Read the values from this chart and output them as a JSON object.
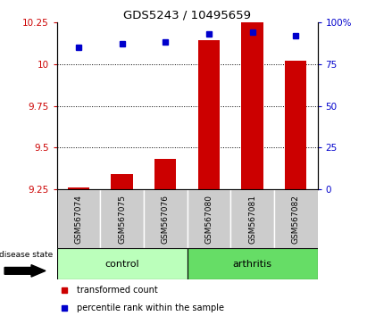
{
  "title": "GDS5243 / 10495659",
  "samples": [
    "GSM567074",
    "GSM567075",
    "GSM567076",
    "GSM567080",
    "GSM567081",
    "GSM567082"
  ],
  "bar_values": [
    9.262,
    9.345,
    9.435,
    10.14,
    10.255,
    10.02
  ],
  "percentile_values": [
    85,
    87,
    88,
    93,
    94,
    92
  ],
  "bar_color": "#cc0000",
  "dot_color": "#0000cc",
  "ylim_left": [
    9.25,
    10.25
  ],
  "ylim_right": [
    0,
    100
  ],
  "yticks_left": [
    9.25,
    9.5,
    9.75,
    10.0,
    10.25
  ],
  "yticks_right": [
    0,
    25,
    50,
    75,
    100
  ],
  "ytick_labels_left": [
    "9.25",
    "9.5",
    "9.75",
    "10",
    "10.25"
  ],
  "ytick_labels_right": [
    "0",
    "25",
    "50",
    "75",
    "100%"
  ],
  "grid_values": [
    9.5,
    9.75,
    10.0
  ],
  "bar_base": 9.25,
  "legend_items": [
    "transformed count",
    "percentile rank within the sample"
  ],
  "disease_state_label": "disease state",
  "control_fill": "#bbffbb",
  "arthritis_fill": "#66dd66",
  "sample_panel_color": "#cccccc",
  "bar_width": 0.5
}
